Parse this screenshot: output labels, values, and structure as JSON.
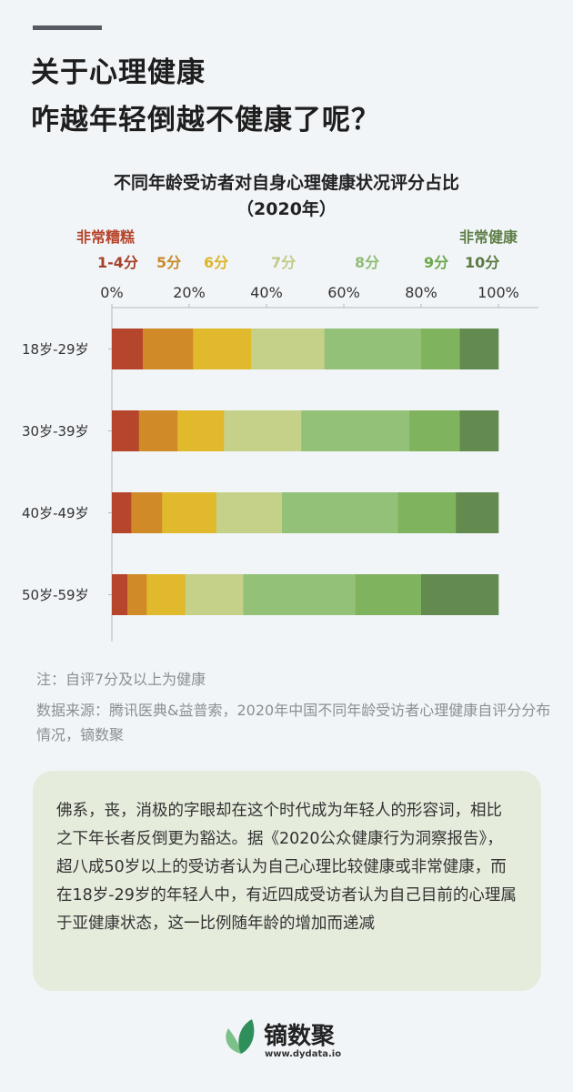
{
  "header": {
    "title_line1": "关于心理健康",
    "title_line2": "咋越年轻倒越不健康了呢？"
  },
  "chart_data": {
    "type": "bar",
    "orientation": "horizontal-stacked-percent",
    "title": "不同年龄受访者对自身心理健康状况评分占比",
    "subtitle": "（2020年）",
    "legend_left_caption": "非常糟糕",
    "legend_right_caption": "非常健康",
    "categories": [
      "18岁-29岁",
      "30岁-39岁",
      "40岁-49岁",
      "50岁-59岁"
    ],
    "xlim": [
      0,
      100
    ],
    "xticks": [
      "0%",
      "20%",
      "40%",
      "60%",
      "80%",
      "100%"
    ],
    "legend_position": "top",
    "series": [
      {
        "name": "1-4分",
        "color": "#b5452b",
        "values": [
          8,
          7,
          5,
          4
        ]
      },
      {
        "name": "5分",
        "color": "#d08a27",
        "values": [
          13,
          10,
          8,
          5
        ]
      },
      {
        "name": "6分",
        "color": "#e0b92c",
        "values": [
          15,
          12,
          14,
          10
        ]
      },
      {
        "name": "7分",
        "color": "#c5d088",
        "values": [
          19,
          20,
          17,
          15
        ]
      },
      {
        "name": "8分",
        "color": "#93c178",
        "values": [
          25,
          28,
          30,
          29
        ]
      },
      {
        "name": "9分",
        "color": "#80b35d",
        "values": [
          10,
          13,
          15,
          17
        ]
      },
      {
        "name": "10分",
        "color": "#638a4f",
        "values": [
          10,
          10,
          11,
          20
        ]
      }
    ]
  },
  "legend_colors": {
    "left_caption": "#b5452b",
    "right_caption": "#5f7f48"
  },
  "notes": {
    "note": "注：自评7分及以上为健康",
    "source": "数据来源：腾讯医典&益普索，2020年中国不同年龄受访者心理健康自评分分布情况，镝数聚"
  },
  "summary": "佛系，丧，消极的字眼却在这个时代成为年轻人的形容词，相比之下年长者反倒更为豁达。据《2020公众健康行为洞察报告》，超八成50岁以上的受访者认为自己心理比较健康或非常健康，而在18岁-29岁的年轻人中，有近四成受访者认为自己目前的心理属于亚健康状态，这一比例随年龄的增加而递减",
  "footer": {
    "brand": "镝数聚",
    "url": "www.dydata.io"
  }
}
